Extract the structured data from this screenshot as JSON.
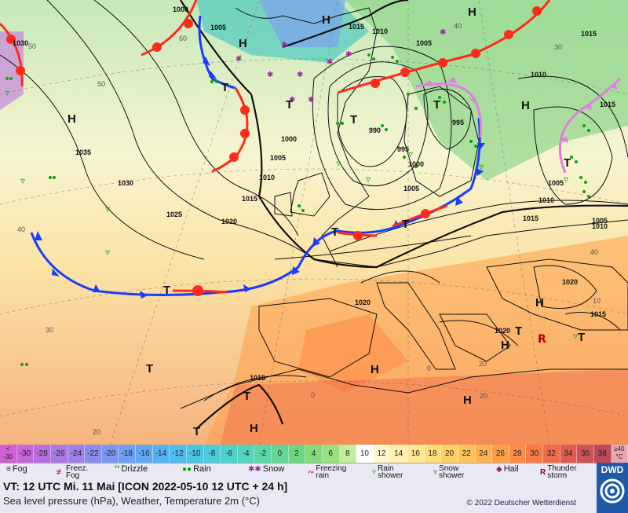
{
  "map": {
    "pressure_labels": [
      "1000",
      "1005",
      "1015",
      "1010",
      "1030",
      "1005",
      "1010",
      "1005",
      "1010",
      "1015",
      "990",
      "1000",
      "1005",
      "1010",
      "1015",
      "995",
      "1000",
      "1005",
      "995",
      "1035",
      "1030",
      "1025",
      "1020",
      "1015",
      "1010",
      "1005",
      "1020",
      "1015",
      "1020",
      "1015",
      "1015",
      "1020",
      "1000",
      "1030",
      "1015",
      "1020"
    ],
    "isotherm_labels": [
      "50",
      "60",
      "50",
      "40",
      "40",
      "30",
      "20",
      "20",
      "30",
      "20",
      "40",
      "0",
      "0",
      "10"
    ],
    "highs": [
      "H",
      "H",
      "H",
      "H",
      "H",
      "H",
      "H",
      "H",
      "H",
      "H"
    ],
    "lows": [
      "T",
      "T",
      "T",
      "T",
      "T",
      "T",
      "T",
      "T",
      "T",
      "T",
      "T",
      "T",
      "T"
    ]
  },
  "scale": [
    {
      "label": "<\n-30",
      "color": "#d25ed3"
    },
    {
      "label": "-30",
      "color": "#c566dc"
    },
    {
      "label": "-28",
      "color": "#b86ee0"
    },
    {
      "label": "-26",
      "color": "#a978e5"
    },
    {
      "label": "-24",
      "color": "#9a82ea"
    },
    {
      "label": "-22",
      "color": "#8b8cee"
    },
    {
      "label": "-20",
      "color": "#7c96f2"
    },
    {
      "label": "-18",
      "color": "#6e9ff3"
    },
    {
      "label": "-16",
      "color": "#60a8f4"
    },
    {
      "label": "-14",
      "color": "#55b2f2"
    },
    {
      "label": "-12",
      "color": "#4fbbee"
    },
    {
      "label": "-10",
      "color": "#4bc4e6"
    },
    {
      "label": "-8",
      "color": "#4bcbdb"
    },
    {
      "label": "-6",
      "color": "#4dd1cc"
    },
    {
      "label": "-4",
      "color": "#52d5bb"
    },
    {
      "label": "-2",
      "color": "#5ad7a8"
    },
    {
      "label": "0",
      "color": "#63d693"
    },
    {
      "label": "2",
      "color": "#6ed681"
    },
    {
      "label": "4",
      "color": "#82da7b"
    },
    {
      "label": "6",
      "color": "#9be07e"
    },
    {
      "label": "8",
      "color": "#c3ec9c"
    },
    {
      "label": "10",
      "color": "#ffffff"
    },
    {
      "label": "12",
      "color": "#fff7cf"
    },
    {
      "label": "14",
      "color": "#fff0b0"
    },
    {
      "label": "16",
      "color": "#ffe890"
    },
    {
      "label": "18",
      "color": "#ffdd78"
    },
    {
      "label": "20",
      "color": "#ffd066"
    },
    {
      "label": "22",
      "color": "#ffc25a"
    },
    {
      "label": "24",
      "color": "#ffb050"
    },
    {
      "label": "26",
      "color": "#ff9e4a"
    },
    {
      "label": "28",
      "color": "#ff8c46"
    },
    {
      "label": "30",
      "color": "#fb7a47"
    },
    {
      "label": "32",
      "color": "#f06a4c"
    },
    {
      "label": "34",
      "color": "#e05c52"
    },
    {
      "label": "36",
      "color": "#ce5257"
    },
    {
      "label": "38",
      "color": "#bb4a5c"
    },
    {
      "label": "≥40\n°C",
      "color": "#e7a7b0"
    }
  ],
  "legend": {
    "fog": "Fog",
    "freezing_fog": "Freez.\nFog",
    "drizzle": "Drizzle",
    "rain": "Rain",
    "snow": "Snow",
    "freezing_rain": "Freezing\nrain",
    "rain_shower": "Rain\nshower",
    "snow_shower": "Snow\nshower",
    "hail": "Hail",
    "thunderstorm": "Thunder\nstorm"
  },
  "info": {
    "valid_time": "VT: 12 UTC Mi.  11 Mai [ICON 2022-05-10  12 UTC + 24 h]",
    "description": "Sea level pressure (hPa), Weather, Temperature 2m (°C)",
    "copyright": "© 2022 Deutscher Wetterdienst",
    "logo": "DWD"
  },
  "colors": {
    "cold_front": "#1a3cff",
    "warm_front": "#ff2a1a",
    "occlusion": "#e47ce6",
    "isobar": "#111111"
  }
}
